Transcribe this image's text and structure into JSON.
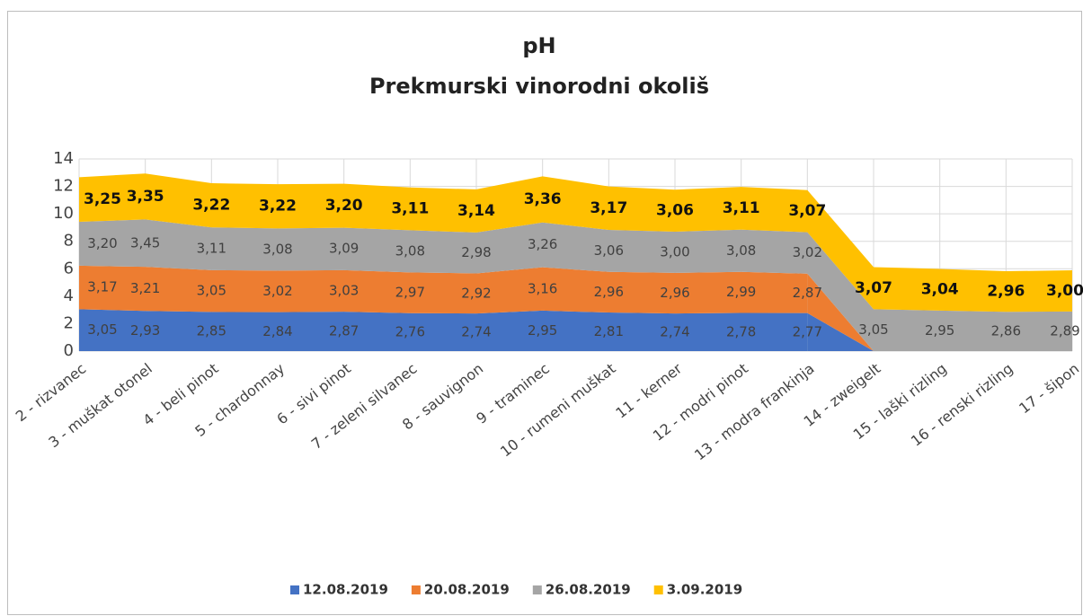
{
  "chart_data": {
    "type": "stacked_area",
    "title": "pH",
    "subtitle": "Prekmurski vinorodni okoliš",
    "categories": [
      "2 - rizvanec",
      "3 - muškat otonel",
      "4 - beli pinot",
      "5 - chardonnay",
      "6 - sivi pinot",
      "7 - zeleni silvanec",
      "8 - sauvignon",
      "9 - traminec",
      "10 - rumeni muškat",
      "11 - kerner",
      "12 - modri pinot",
      "13 - modra frankinja",
      "14 - zweigelt",
      "15 - laški rizling",
      "16 - renski rizling",
      "17 - šipon"
    ],
    "series": [
      {
        "name": "12.08.2019",
        "color": "#4472c4",
        "values": [
          3.05,
          2.93,
          2.85,
          2.84,
          2.87,
          2.76,
          2.74,
          2.95,
          2.81,
          2.74,
          2.78,
          2.77,
          null,
          null,
          null,
          null
        ],
        "value_labels": [
          "3,05",
          "2,93",
          "2,85",
          "2,84",
          "2,87",
          "2,76",
          "2,74",
          "2,95",
          "2,81",
          "2,74",
          "2,78",
          "2,77",
          null,
          null,
          null,
          null
        ]
      },
      {
        "name": "20.08.2019",
        "color": "#ed7d31",
        "values": [
          3.17,
          3.21,
          3.05,
          3.02,
          3.03,
          2.97,
          2.92,
          3.16,
          2.96,
          2.96,
          2.99,
          2.87,
          null,
          null,
          null,
          null
        ],
        "value_labels": [
          "3,17",
          "3,21",
          "3,05",
          "3,02",
          "3,03",
          "2,97",
          "2,92",
          "3,16",
          "2,96",
          "2,96",
          "2,99",
          "2,87",
          null,
          null,
          null,
          null
        ]
      },
      {
        "name": "26.08.2019",
        "color": "#a5a5a5",
        "values": [
          3.2,
          3.45,
          3.11,
          3.08,
          3.09,
          3.08,
          2.98,
          3.26,
          3.06,
          3.0,
          3.08,
          3.02,
          3.05,
          2.95,
          2.86,
          2.89
        ],
        "value_labels": [
          "3,20",
          "3,45",
          "3,11",
          "3,08",
          "3,09",
          "3,08",
          "2,98",
          "3,26",
          "3,06",
          "3,00",
          "3,08",
          "3,02",
          "3,05",
          "2,95",
          "2,86",
          "2,89"
        ]
      },
      {
        "name": "3.09.2019",
        "color": "#ffc000",
        "values": [
          3.25,
          3.35,
          3.22,
          3.22,
          3.2,
          3.11,
          3.14,
          3.36,
          3.17,
          3.06,
          3.11,
          3.07,
          3.07,
          3.04,
          2.96,
          3.0
        ],
        "value_labels": [
          "3,25",
          "3,35",
          "3,22",
          "3,22",
          "3,20",
          "3,11",
          "3,14",
          "3,36",
          "3,17",
          "3,06",
          "3,11",
          "3,07",
          "3,07",
          "3,04",
          "2,96",
          "3,00"
        ]
      }
    ],
    "ylim": [
      0,
      14
    ],
    "yticks": [
      0,
      2,
      4,
      6,
      8,
      10,
      12,
      14
    ],
    "grid": true,
    "legend": "bottom"
  }
}
